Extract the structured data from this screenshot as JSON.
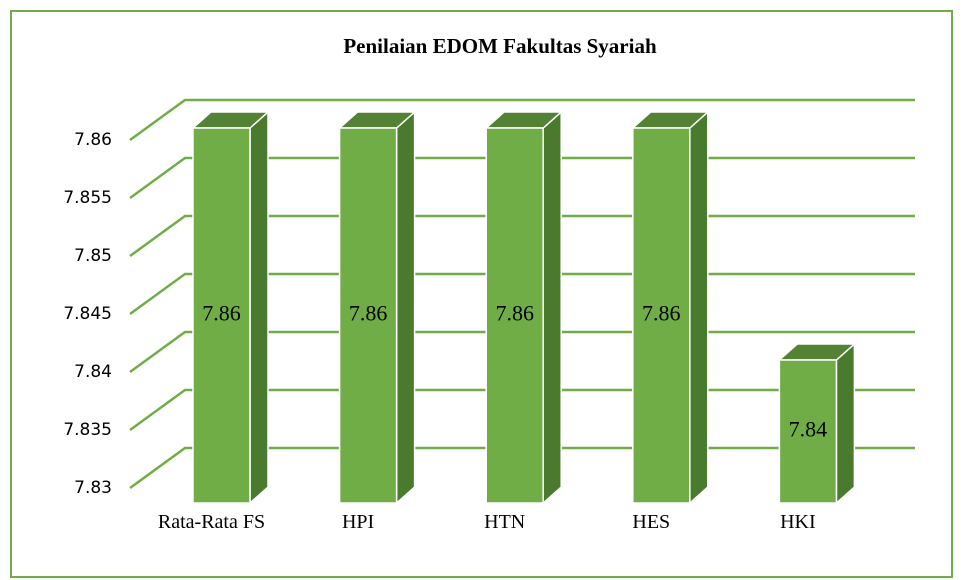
{
  "chart_data": {
    "type": "bar3d",
    "title": "Penilaian EDOM Fakultas Syariah",
    "categories": [
      "Rata-Rata FS",
      "HPI",
      "HTN",
      "HES",
      "HKI"
    ],
    "values": [
      7.86,
      7.86,
      7.86,
      7.86,
      7.84
    ],
    "color": "#70ad47",
    "side_color": "#4a7a2e",
    "top_color": "#548235",
    "grid_color": "#70ad47",
    "ylim": [
      7.83,
      7.86
    ],
    "yticks": [
      7.83,
      7.835,
      7.84,
      7.845,
      7.85,
      7.855,
      7.86
    ],
    "grid": true
  }
}
